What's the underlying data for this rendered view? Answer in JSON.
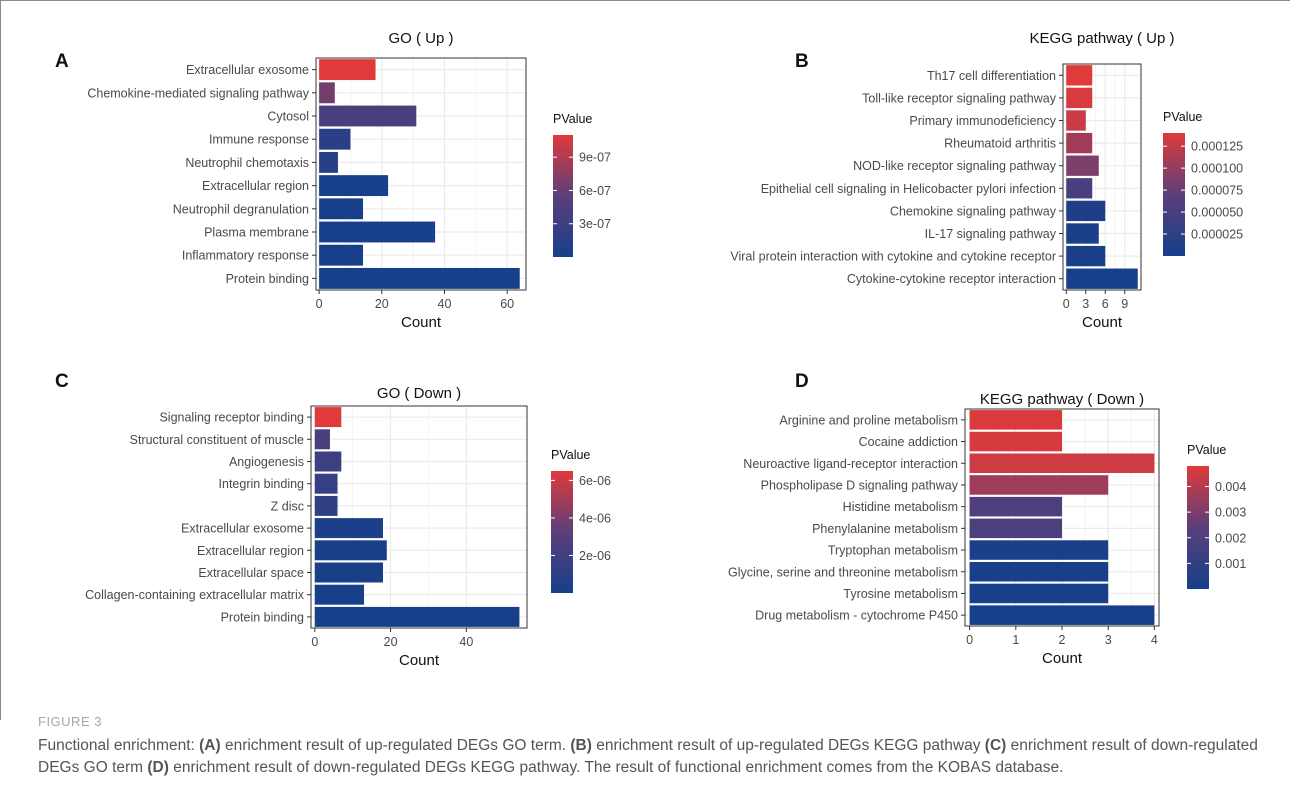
{
  "figure": {
    "label": "FIGURE 3",
    "caption_segments": [
      {
        "text": "Functional enrichment: ",
        "bold": false
      },
      {
        "text": "(A)",
        "bold": true
      },
      {
        "text": " enrichment result of up-regulated DEGs GO term. ",
        "bold": false
      },
      {
        "text": "(B)",
        "bold": true
      },
      {
        "text": " enrichment result of up-regulated DEGs KEGG pathway ",
        "bold": false
      },
      {
        "text": "(C)",
        "bold": true
      },
      {
        "text": " enrichment result of down-regulated DEGs GO term ",
        "bold": false
      },
      {
        "text": "(D)",
        "bold": true
      },
      {
        "text": " enrichment result of down-regulated DEGs KEGG pathway. The result of functional enrichment comes from the KOBAS database.",
        "bold": false
      }
    ]
  },
  "colors": {
    "high": "#e03a3a",
    "mid": "#5b3f7a",
    "low": "#163f8a",
    "grid": "#ebebeb",
    "panel_border": "#333333"
  },
  "chart_data": [
    {
      "panel": "A",
      "type": "bar",
      "orientation": "horizontal",
      "title": "GO ( Up )",
      "xlabel": "Count",
      "legend_title": "PValue",
      "xlim": [
        -1,
        66
      ],
      "xticks": [
        0,
        20,
        40,
        60
      ],
      "categories": [
        "Extracellular exosome",
        "Chemokine-mediated signaling pathway",
        "Cytosol",
        "Immune response",
        "Neutrophil chemotaxis",
        "Extracellular region",
        "Neutrophil degranulation",
        "Plasma membrane",
        "Inflammatory response",
        "Protein binding"
      ],
      "values": [
        18,
        5,
        31,
        10,
        6,
        22,
        14,
        37,
        14,
        64
      ],
      "pvalues": [
        1.1e-06,
        6.5e-07,
        4e-07,
        1.6e-07,
        1.3e-07,
        1.1e-08,
        1e-08,
        9e-09,
        8e-09,
        5e-09
      ],
      "legend_range": [
        0,
        1.1e-06
      ],
      "legend_ticks": [
        {
          "value": 9e-07,
          "label": "9e-07"
        },
        {
          "value": 6e-07,
          "label": "6e-07"
        },
        {
          "value": 3e-07,
          "label": "3e-07"
        }
      ]
    },
    {
      "panel": "B",
      "type": "bar",
      "orientation": "horizontal",
      "title": "KEGG pathway ( Up )",
      "xlabel": "Count",
      "legend_title": "PValue",
      "xlim": [
        -0.5,
        11.5
      ],
      "xticks": [
        0,
        3,
        6,
        9
      ],
      "categories": [
        "Th17 cell differentiation",
        "Toll-like receptor signaling pathway",
        "Primary immunodeficiency",
        "Rheumatoid arthritis",
        "NOD-like receptor signaling pathway",
        "Epithelial cell signaling in Helicobacter pylori infection",
        "Chemokine signaling pathway",
        "IL-17 signaling pathway",
        "Viral protein interaction with cytokine and cytokine receptor",
        "Cytokine-cytokine receptor interaction"
      ],
      "values": [
        4,
        4,
        3,
        4,
        5,
        4,
        6,
        5,
        6,
        11
      ],
      "pvalues": [
        0.00014,
        0.000135,
        0.000128,
        0.000107,
        8.8e-05,
        5.2e-05,
        8e-06,
        5e-06,
        4e-06,
        1e-06
      ],
      "legend_range": [
        0,
        0.00014
      ],
      "legend_ticks": [
        {
          "value": 0.000125,
          "label": "0.000125"
        },
        {
          "value": 0.0001,
          "label": "0.000100"
        },
        {
          "value": 7.5e-05,
          "label": "0.000075"
        },
        {
          "value": 5e-05,
          "label": "0.000050"
        },
        {
          "value": 2.5e-05,
          "label": "0.000025"
        }
      ]
    },
    {
      "panel": "C",
      "type": "bar",
      "orientation": "horizontal",
      "title": "GO ( Down )",
      "xlabel": "Count",
      "legend_title": "PValue",
      "xlim": [
        -1,
        56
      ],
      "xticks": [
        0,
        20,
        40
      ],
      "categories": [
        "Signaling receptor binding",
        "Structural constituent of muscle",
        "Angiogenesis",
        "Integrin binding",
        "Z disc",
        "Extracellular exosome",
        "Extracellular region",
        "Extracellular space",
        "Collagen-containing extracellular matrix",
        "Protein binding"
      ],
      "values": [
        7,
        4,
        7,
        6,
        6,
        18,
        19,
        18,
        13,
        54
      ],
      "pvalues": [
        6.5e-06,
        2.4e-06,
        1.8e-06,
        1.5e-06,
        1.2e-06,
        3e-07,
        2e-07,
        1.5e-07,
        1e-07,
        5e-08
      ],
      "legend_range": [
        0,
        6.5e-06
      ],
      "legend_ticks": [
        {
          "value": 6e-06,
          "label": "6e-06"
        },
        {
          "value": 4e-06,
          "label": "4e-06"
        },
        {
          "value": 2e-06,
          "label": "2e-06"
        }
      ]
    },
    {
      "panel": "D",
      "type": "bar",
      "orientation": "horizontal",
      "title": "KEGG pathway ( Down )",
      "xlabel": "Count",
      "legend_title": "PValue",
      "xlim": [
        -0.1,
        4.1
      ],
      "xticks": [
        0,
        1,
        2,
        3,
        4
      ],
      "categories": [
        "Arginine and proline metabolism",
        "Cocaine addiction",
        "Neuroactive ligand-receptor interaction",
        "Phospholipase D signaling pathway",
        "Histidine metabolism",
        "Phenylalanine metabolism",
        "Tryptophan metabolism",
        "Glycine, serine and threonine metabolism",
        "Tyrosine metabolism",
        "Drug metabolism - cytochrome P450"
      ],
      "values": [
        2,
        2,
        4,
        3,
        2,
        2,
        3,
        3,
        3,
        4
      ],
      "pvalues": [
        0.0047,
        0.0046,
        0.0045,
        0.0036,
        0.002,
        0.0019,
        0.0002,
        0.00015,
        0.0001,
        5e-05
      ],
      "legend_range": [
        0,
        0.0048
      ],
      "legend_ticks": [
        {
          "value": 0.004,
          "label": "0.004"
        },
        {
          "value": 0.003,
          "label": "0.003"
        },
        {
          "value": 0.002,
          "label": "0.002"
        },
        {
          "value": 0.001,
          "label": "0.001"
        }
      ]
    }
  ]
}
